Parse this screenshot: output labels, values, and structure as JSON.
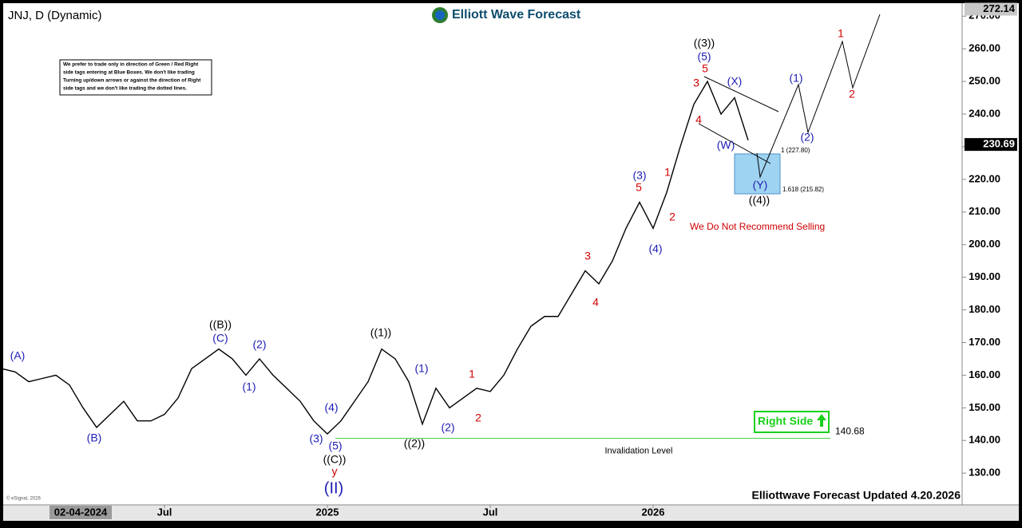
{
  "chart_data": {
    "type": "line",
    "title": "JNJ, D (Dynamic)",
    "brand": "Elliott Wave Forecast",
    "notice": [
      "We prefer to trade only in direction of Green / Red Right",
      "side tags entering at Blue Boxes. We don't like trading",
      "Turning up/down arrows or against the direction of Right",
      "side tags and we don't like trading the dotted lines."
    ],
    "categories": [
      "02-04-2024",
      null,
      null,
      null,
      null,
      null,
      null,
      null,
      null,
      null,
      null,
      null,
      "Jul",
      null,
      null,
      null,
      null,
      null,
      null,
      null,
      null,
      null,
      null,
      null,
      "2025",
      null,
      null,
      null,
      null,
      null,
      null,
      null,
      null,
      null,
      null,
      null,
      "Jul",
      null,
      null,
      null,
      null,
      null,
      null,
      null,
      null,
      null,
      null,
      null,
      "2026",
      null,
      null,
      null,
      null,
      null,
      null,
      null
    ],
    "series": [
      {
        "name": "JNJ",
        "color": "#000000",
        "values": [
          162,
          161,
          158,
          159,
          160,
          157,
          150,
          144,
          148,
          152,
          146,
          146,
          148,
          153,
          162,
          165,
          168,
          165,
          160,
          165,
          160,
          156,
          152,
          146,
          142,
          146,
          152,
          158,
          168,
          165,
          158,
          145,
          156,
          150,
          153,
          156,
          155,
          160,
          168,
          175,
          178,
          178,
          185,
          192,
          188,
          195,
          205,
          213,
          205,
          216,
          230,
          243,
          250,
          240,
          245,
          232
        ]
      }
    ],
    "ylim": [
      121,
      273
    ],
    "yticks": [
      {
        "value": 130,
        "label": "130.00"
      },
      {
        "value": 140,
        "label": "140.00"
      },
      {
        "value": 150,
        "label": "150.00"
      },
      {
        "value": 160,
        "label": "160.00"
      },
      {
        "value": 170,
        "label": "170.00"
      },
      {
        "value": 180,
        "label": "180.00"
      },
      {
        "value": 190,
        "label": "190.00"
      },
      {
        "value": 200,
        "label": "200.00"
      },
      {
        "value": 210,
        "label": "210.00"
      },
      {
        "value": 220,
        "label": "220.00"
      },
      {
        "value": 230,
        "label": "230.00"
      },
      {
        "value": 240,
        "label": "240.00"
      },
      {
        "value": 250,
        "label": "250.00"
      },
      {
        "value": 260,
        "label": "260.00"
      },
      {
        "value": 270,
        "label": "270.00"
      }
    ],
    "price_tags": [
      272.14,
      230.69
    ],
    "invalidation": {
      "value": 140.68,
      "label": "Invalidation Level"
    },
    "wave_labels": [
      {
        "text": "(A)",
        "color": "#1c1cb4"
      },
      {
        "text": "(B)",
        "color": "#1c1cb4"
      },
      {
        "text": "((B))",
        "color": "#000000"
      },
      {
        "text": "(C)",
        "color": "#1c1cb4"
      },
      {
        "text": "(2)",
        "color": "#1c1cb4"
      },
      {
        "text": "(1)",
        "color": "#1c1cb4"
      },
      {
        "text": "(4)",
        "color": "#1c1cb4"
      },
      {
        "text": "(3)",
        "color": "#1c1cb4"
      },
      {
        "text": "(5)",
        "color": "#1c1cb4"
      },
      {
        "text": "((C))",
        "color": "#000000"
      },
      {
        "text": "y",
        "color": "#d00000"
      },
      {
        "text": "(II)",
        "color": "#1c1cb4"
      },
      {
        "text": "((1))",
        "color": "#000000"
      },
      {
        "text": "((2))",
        "color": "#000000"
      },
      {
        "text": "(1)",
        "color": "#1c1cb4"
      },
      {
        "text": "(2)",
        "color": "#1c1cb4"
      },
      {
        "text": "1",
        "color": "#d00000"
      },
      {
        "text": "2",
        "color": "#d00000"
      },
      {
        "text": "3",
        "color": "#d00000"
      },
      {
        "text": "4",
        "color": "#d00000"
      },
      {
        "text": "(3)",
        "color": "#1c1cb4"
      },
      {
        "text": "5",
        "color": "#d00000"
      },
      {
        "text": "(4)",
        "color": "#1c1cb4"
      },
      {
        "text": "1",
        "color": "#d00000"
      },
      {
        "text": "2",
        "color": "#d00000"
      },
      {
        "text": "((3))",
        "color": "#000000"
      },
      {
        "text": "(5)",
        "color": "#1c1cb4"
      },
      {
        "text": "5",
        "color": "#d00000"
      },
      {
        "text": "3",
        "color": "#d00000"
      },
      {
        "text": "4",
        "color": "#d00000"
      },
      {
        "text": "(X)",
        "color": "#1c1cb4"
      },
      {
        "text": "(W)",
        "color": "#1c1cb4"
      },
      {
        "text": "(Y)",
        "color": "#1c1cb4"
      },
      {
        "text": "((4))",
        "color": "#000000"
      },
      {
        "text": "(1)",
        "color": "#1c1cb4"
      },
      {
        "text": "(2)",
        "color": "#1c1cb4"
      },
      {
        "text": "1",
        "color": "#d00000"
      },
      {
        "text": "2",
        "color": "#d00000"
      }
    ],
    "fib_labels": [
      "1 (227.80)",
      "1.618 (215.82)"
    ],
    "warning": "We Do Not Recommend Selling",
    "right_side": "Right Side",
    "footer": "Elliottwave Forecast Updated 4.20.2026",
    "copyright": "© eSignal, 2026"
  }
}
